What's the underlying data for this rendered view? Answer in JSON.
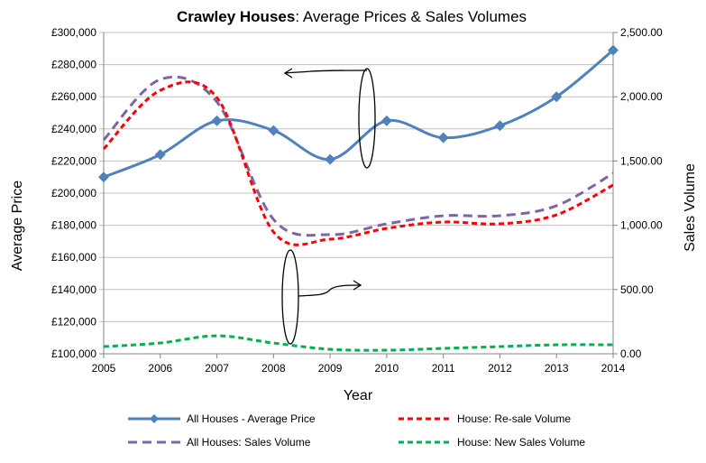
{
  "chart_data": {
    "type": "line",
    "title_bold": "Crawley Houses",
    "title_rest": ": Average Prices & Sales Volumes",
    "xlabel": "Year",
    "ylabel": "Average Price",
    "y2label": "Sales Volume",
    "x": [
      2005,
      2006,
      2007,
      2008,
      2009,
      2010,
      2011,
      2012,
      2013,
      2014
    ],
    "x_tick_labels": [
      "2005",
      "2006",
      "2007",
      "2008",
      "2009",
      "2010",
      "2011",
      "2012",
      "2013",
      "2014"
    ],
    "ylim": [
      100000,
      300000
    ],
    "y_tick_labels": [
      "£100,000",
      "£120,000",
      "£140,000",
      "£160,000",
      "£180,000",
      "£200,000",
      "£220,000",
      "£240,000",
      "£260,000",
      "£280,000",
      "£300,000"
    ],
    "y2lim": [
      0,
      2500
    ],
    "y2_tick_labels": [
      "0.00",
      "500.00",
      "1,000.00",
      "1,500.00",
      "2,000.00",
      "2,500.00"
    ],
    "grid": "horizontal",
    "legend_placement": "bottom",
    "series": [
      {
        "name": "All Houses -  Average Price",
        "axis": "left",
        "color": "#4f81bd",
        "style": "solid-markers",
        "values": [
          210000,
          224000,
          245000,
          239000,
          221000,
          245000,
          234500,
          242000,
          260000,
          289000
        ]
      },
      {
        "name": "House: Re-sale Volume",
        "axis": "right",
        "color": "#ff0000",
        "style": "dash-short",
        "values": [
          1594,
          2050,
          1994,
          948,
          892,
          976,
          1025,
          1011,
          1081,
          1313
        ]
      },
      {
        "name": "All Houses: Sales Volume",
        "axis": "right",
        "color": "#8064a2",
        "style": "dash-long",
        "values": [
          1664,
          2135,
          1960,
          1046,
          927,
          1011,
          1074,
          1074,
          1152,
          1404
        ]
      },
      {
        "name": "House: New Sales Volume",
        "axis": "right",
        "color": "#00b050",
        "style": "dash-short",
        "values": [
          56,
          84,
          140,
          84,
          35,
          28,
          42,
          56,
          70,
          70
        ]
      }
    ]
  }
}
